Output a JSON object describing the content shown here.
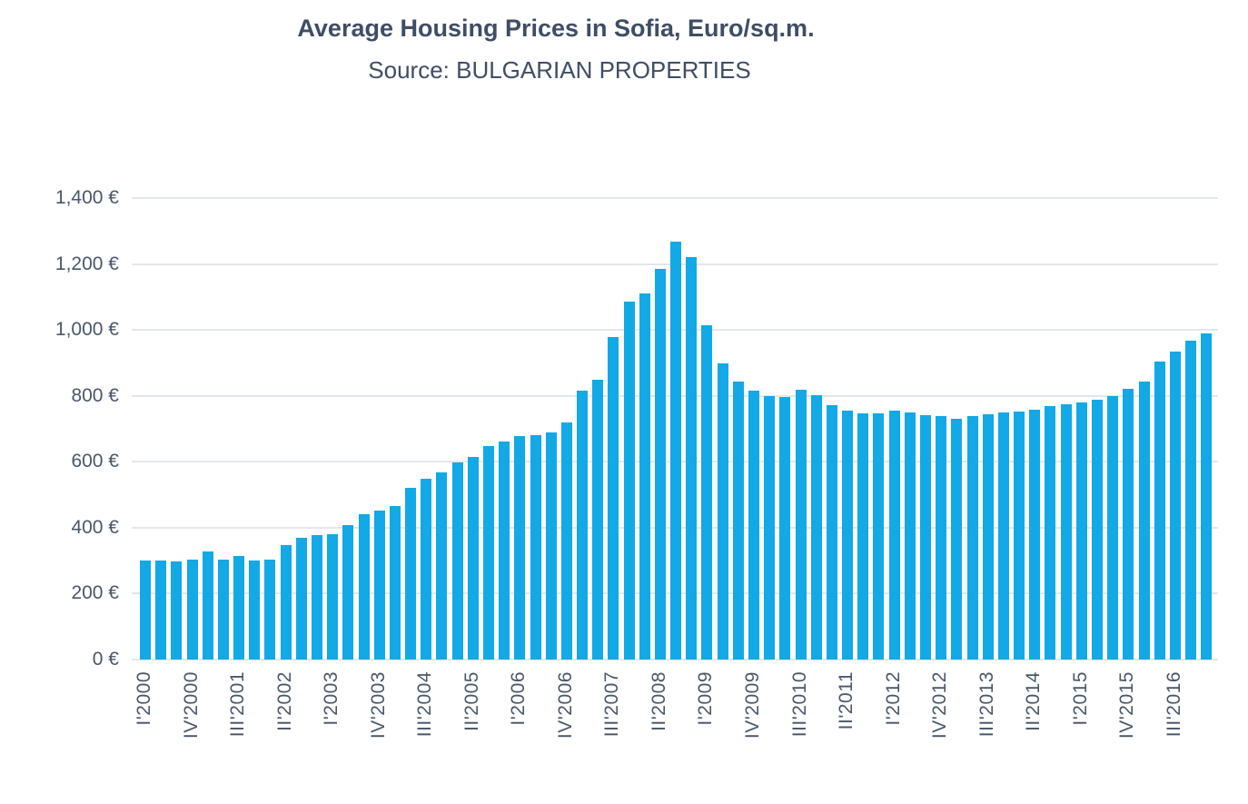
{
  "header": {
    "title": "Average Housing Prices in Sofia, Euro/sq.m.",
    "subtitle": "Source: BULGARIAN PROPERTIES"
  },
  "chart_data": {
    "type": "bar",
    "title": "Average Housing Prices in Sofia, Euro/sq.m.",
    "subtitle": "Source: BULGARIAN PROPERTIES",
    "unit": "Euro/sq.m.",
    "ylim": [
      0,
      1400
    ],
    "grid": true,
    "legend": false,
    "y_ticks": [
      0,
      200,
      400,
      600,
      800,
      1000,
      1200,
      1400
    ],
    "y_tick_labels": [
      "0 €",
      "200 €",
      "400 €",
      "600 €",
      "800 €",
      "1,000 €",
      "1,200 €",
      "1,400 €"
    ],
    "x_tick_labels": [
      "I'2000",
      "IV'2000",
      "III'2001",
      "II'2002",
      "I'2003",
      "IV'2003",
      "III'2004",
      "II'2005",
      "I'2006",
      "IV'2006",
      "III'2007",
      "II'2008",
      "I'2009",
      "IV'2009",
      "III'2010",
      "II'2011",
      "I'2012",
      "IV'2012",
      "III'2013",
      "II'2014",
      "I'2015",
      "IV'2015",
      "III'2016"
    ],
    "x_tick_interval": 3,
    "categories": [
      "I'2000",
      "II'2000",
      "III'2000",
      "IV'2000",
      "I'2001",
      "II'2001",
      "III'2001",
      "IV'2001",
      "I'2002",
      "II'2002",
      "III'2002",
      "IV'2002",
      "I'2003",
      "II'2003",
      "III'2003",
      "IV'2003",
      "I'2004",
      "II'2004",
      "III'2004",
      "IV'2004",
      "I'2005",
      "II'2005",
      "III'2005",
      "IV'2005",
      "I'2006",
      "II'2006",
      "III'2006",
      "IV'2006",
      "I'2007",
      "II'2007",
      "III'2007",
      "IV'2007",
      "I'2008",
      "II'2008",
      "III'2008",
      "IV'2008",
      "I'2009",
      "II'2009",
      "III'2009",
      "IV'2009",
      "I'2010",
      "II'2010",
      "III'2010",
      "IV'2010",
      "I'2011",
      "II'2011",
      "III'2011",
      "IV'2011",
      "I'2012",
      "II'2012",
      "III'2012",
      "IV'2012",
      "I'2013",
      "II'2013",
      "III'2013",
      "IV'2013",
      "I'2014",
      "II'2014",
      "III'2014",
      "IV'2014",
      "I'2015",
      "II'2015",
      "III'2015",
      "IV'2015",
      "I'2016",
      "II'2016",
      "III'2016",
      "IV'2016",
      "I'2017"
    ],
    "values": [
      300,
      300,
      298,
      304,
      327,
      303,
      313,
      301,
      304,
      348,
      370,
      377,
      380,
      409,
      440,
      452,
      467,
      521,
      548,
      568,
      599,
      614,
      647,
      661,
      679,
      682,
      690,
      718,
      817,
      849,
      977,
      1087,
      1111,
      1186,
      1267,
      1220,
      1015,
      898,
      843,
      816,
      800,
      797,
      818,
      803,
      771,
      756,
      747,
      746,
      756,
      750,
      741,
      739,
      731,
      739,
      744,
      749,
      752,
      759,
      768,
      774,
      780,
      789,
      800,
      821,
      842,
      905,
      934,
      966,
      988
    ],
    "colors": {
      "bar": "#12A9E6",
      "gridline": "#E3E7EC",
      "title_text": "#3F4D66",
      "axis_text": "#4A5769",
      "background": "#FFFFFF"
    }
  }
}
